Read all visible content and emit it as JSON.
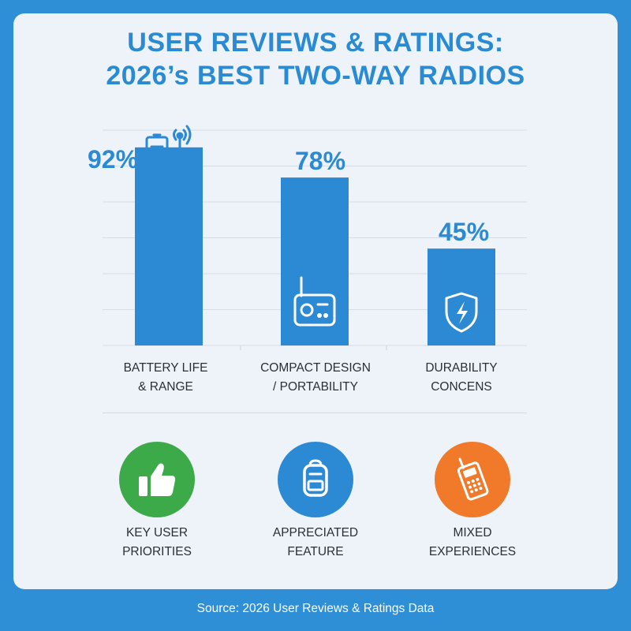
{
  "title_lines": [
    "USER REVIEWS & RATINGS:",
    "2026’s BEST TWO-WAY RADIOS"
  ],
  "chart_data": {
    "type": "bar",
    "categories": [
      "BATTERY LIFE\n& RANGE",
      "COMPACT DESIGN\n/ PORTABILITY",
      "DURABILITY\nCONCENS"
    ],
    "values": [
      92,
      78,
      45
    ],
    "value_labels": [
      "92%",
      "78%",
      "45%"
    ],
    "ylim": [
      0,
      100
    ],
    "grid": true,
    "bar_color": "#2b8ad3",
    "label_color": "#2b8ad3"
  },
  "icons": {
    "bars": [
      "battery-antenna-icon",
      "radio-icon",
      "shield-lightning-icon"
    ]
  },
  "features": [
    {
      "label": "KEY USER\nPRIORITIES",
      "icon": "thumbs-up-icon",
      "color": "#3daa4a"
    },
    {
      "label": "APPRECIATED\nFEATURE",
      "icon": "backpack-icon",
      "color": "#2b8ad3"
    },
    {
      "label": "MIXED\nEXPERIENCES",
      "icon": "walkie-talkie-icon",
      "color": "#f07a2a"
    }
  ],
  "source": "Source: 2026 User Reviews & Ratings Data"
}
